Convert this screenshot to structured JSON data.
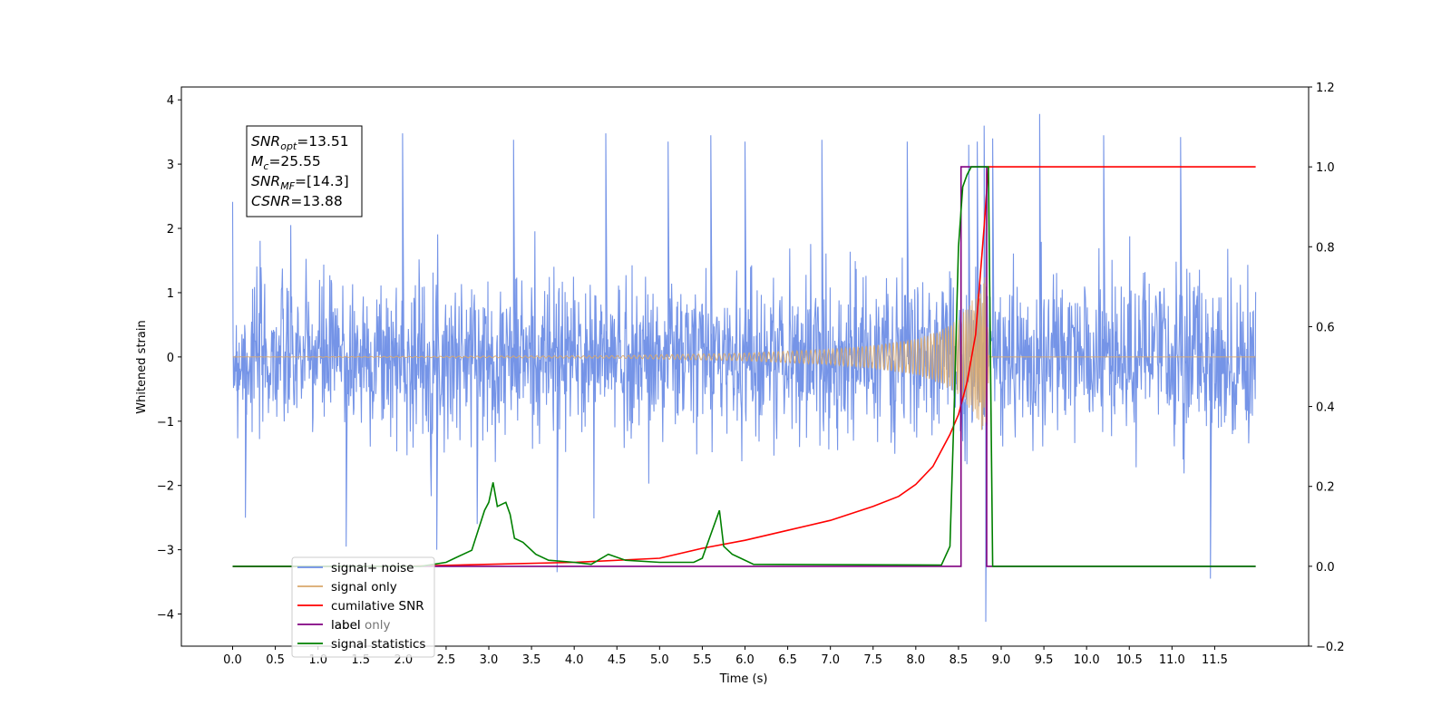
{
  "chart_data": {
    "type": "line",
    "xlabel": "Time (s)",
    "ylabel": "Whitened strain",
    "xlim": [
      -0.6,
      12.6
    ],
    "ylim": [
      -4.5,
      4.2
    ],
    "ylim_right": [
      -0.2,
      1.2
    ],
    "x_ticks": [
      0.0,
      0.5,
      1.0,
      1.5,
      2.0,
      2.5,
      3.0,
      3.5,
      4.0,
      4.5,
      5.0,
      5.5,
      6.0,
      6.5,
      7.0,
      7.5,
      8.0,
      8.5,
      9.0,
      9.5,
      10.0,
      10.5,
      11.0,
      11.5
    ],
    "x_tick_labels": [
      "0.0",
      "0.5",
      "1.0",
      "1.5",
      "2.0",
      "2.5",
      "3.0",
      "3.5",
      "4.0",
      "4.5",
      "5.0",
      "5.5",
      "6.0",
      "6.5",
      "7.0",
      "7.5",
      "8.0",
      "8.5",
      "9.0",
      "9.5",
      "10.0",
      "10.5",
      "11.0",
      "11.5"
    ],
    "y_ticks": [
      -4,
      -3,
      -2,
      -1,
      0,
      1,
      2,
      3,
      4
    ],
    "y_tick_labels": [
      "−4",
      "−3",
      "−2",
      "−1",
      "0",
      "1",
      "2",
      "3",
      "4"
    ],
    "y_ticks_right": [
      -0.2,
      0.0,
      0.2,
      0.4,
      0.6,
      0.8,
      1.0,
      1.2
    ],
    "y_tick_labels_right": [
      "−0.2",
      "0.0",
      "0.2",
      "0.4",
      "0.6",
      "0.8",
      "1.0",
      "1.2"
    ],
    "legend_position": "lower-left",
    "grid": false,
    "annotation": {
      "lines": [
        {
          "base": "SNR",
          "sub": "opt",
          "rest": "=13.51"
        },
        {
          "base": "M",
          "sub": "c",
          "rest": "=25.55"
        },
        {
          "base": "SNR",
          "sub": "MF",
          "rest": "=[14.3]"
        },
        {
          "base": "CSNR",
          "sub": "",
          "rest": "=13.88"
        }
      ]
    },
    "series": [
      {
        "name": "signal+ noise",
        "axis": "left",
        "color": "#6e8ee6",
        "style": "noise",
        "x_range": [
          0.0,
          11.98
        ],
        "envelope": 1.35,
        "x": [
          1.99,
          3.29,
          4.37,
          5.1,
          5.6,
          6.0,
          6.9,
          7.9,
          8.62,
          8.72,
          8.8,
          8.9,
          9.45,
          10.2,
          11.1,
          11.45,
          1.33,
          3.8,
          2.39,
          0.15
        ],
        "values": [
          3.48,
          3.38,
          3.48,
          3.35,
          3.45,
          3.35,
          3.38,
          3.35,
          3.3,
          3.35,
          3.6,
          3.4,
          3.78,
          3.45,
          3.42,
          -3.45,
          -2.95,
          -3.35,
          -3.0,
          -2.5
        ],
        "spike_x": [
          8.82
        ],
        "spike_y": [
          -4.12
        ]
      },
      {
        "name": "signal only",
        "axis": "left",
        "color": "#d9a86b",
        "style": "chirp",
        "x_range": [
          0.0,
          11.98
        ],
        "x": [
          0.0,
          4.5,
          6.0,
          7.0,
          7.5,
          8.0,
          8.3,
          8.5,
          8.7,
          8.83,
          8.86
        ],
        "values": [
          0.0,
          0.02,
          0.06,
          0.12,
          0.18,
          0.28,
          0.42,
          0.6,
          0.95,
          1.3,
          0.0
        ]
      },
      {
        "name": "cumilative SNR",
        "axis": "right",
        "color": "#ff0000",
        "x": [
          0.0,
          2.0,
          3.0,
          4.0,
          5.0,
          5.5,
          6.0,
          6.5,
          7.0,
          7.5,
          7.8,
          8.0,
          8.2,
          8.4,
          8.5,
          8.6,
          8.7,
          8.8,
          8.85,
          9.0,
          11.98
        ],
        "values": [
          0.0,
          0.0,
          0.005,
          0.01,
          0.02,
          0.045,
          0.065,
          0.09,
          0.115,
          0.15,
          0.175,
          0.205,
          0.25,
          0.33,
          0.38,
          0.46,
          0.58,
          0.85,
          1.0,
          1.0,
          1.0
        ]
      },
      {
        "name": "label",
        "axis": "right",
        "color": "#800080",
        "x": [
          0.0,
          8.53,
          8.53,
          8.83,
          8.83,
          11.98
        ],
        "values": [
          0.0,
          0.0,
          1.0,
          1.0,
          0.0,
          0.0
        ]
      },
      {
        "name": "label only",
        "axis": "right",
        "color": "#ffb6c1",
        "x": [],
        "values": []
      },
      {
        "name": "signal statistics",
        "axis": "right",
        "color": "#008000",
        "x": [
          0.0,
          2.2,
          2.5,
          2.6,
          2.8,
          2.95,
          3.0,
          3.05,
          3.1,
          3.2,
          3.25,
          3.3,
          3.4,
          3.55,
          3.7,
          4.0,
          4.2,
          4.4,
          4.6,
          5.0,
          5.4,
          5.5,
          5.6,
          5.7,
          5.75,
          5.85,
          5.95,
          6.1,
          8.3,
          8.4,
          8.45,
          8.5,
          8.55,
          8.6,
          8.65,
          8.7,
          8.85,
          8.9,
          11.98
        ],
        "values": [
          0.0,
          0.0,
          0.01,
          0.02,
          0.04,
          0.14,
          0.16,
          0.21,
          0.15,
          0.16,
          0.13,
          0.07,
          0.06,
          0.03,
          0.015,
          0.01,
          0.005,
          0.03,
          0.015,
          0.01,
          0.01,
          0.02,
          0.08,
          0.14,
          0.05,
          0.03,
          0.02,
          0.005,
          0.003,
          0.05,
          0.4,
          0.8,
          0.95,
          0.98,
          1.0,
          1.0,
          1.0,
          0.0,
          0.0
        ]
      }
    ]
  }
}
